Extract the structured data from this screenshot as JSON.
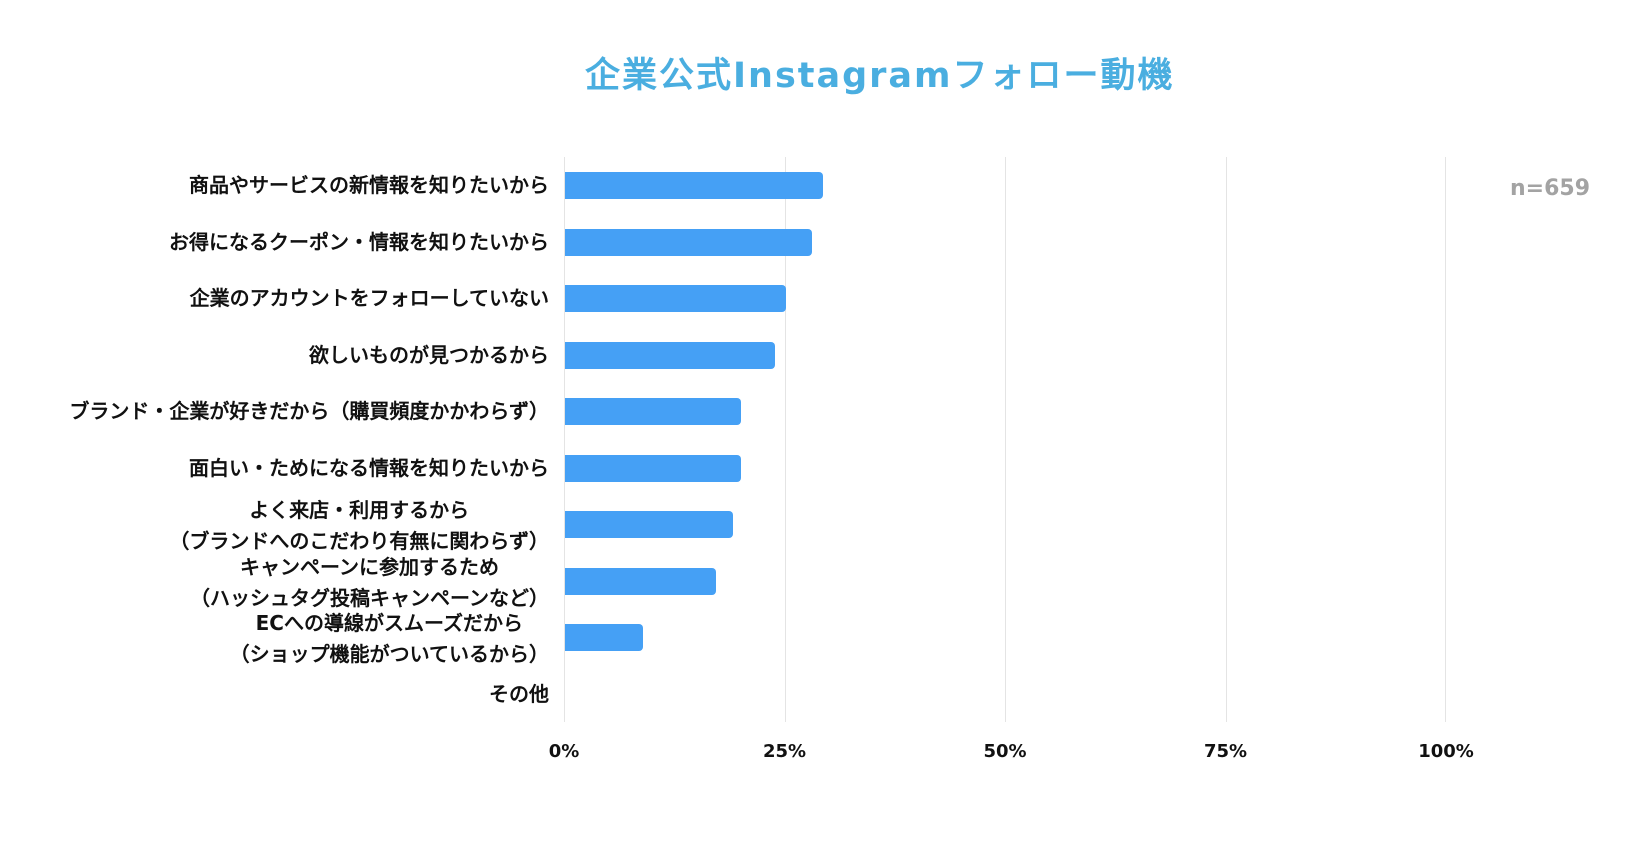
{
  "chart": {
    "title": "企業公式Instagramフォロー動機",
    "sample_size": "n=659",
    "bar_color": "#45a0f5",
    "title_color": "#4aaee0",
    "x_ticks": [
      "0%",
      "25%",
      "50%",
      "75%",
      "100%"
    ]
  },
  "chart_data": {
    "type": "bar",
    "orientation": "horizontal",
    "title": "企業公式Instagramフォロー動機",
    "annotation": "n=659",
    "xlabel": "",
    "ylabel": "",
    "xlim": [
      0,
      100
    ],
    "x_tick_labels": [
      "0%",
      "25%",
      "50%",
      "75%",
      "100%"
    ],
    "grid": "vertical",
    "legend": "none",
    "categories": [
      "商品やサービスの新情報を知りたいから",
      "お得になるクーポン・情報を知りたいから",
      "企業のアカウントをフォローしていない",
      "欲しいものが見つかるから",
      "ブランド・企業が好きだから（購買頻度かかわらず）",
      "面白い・ためになる情報を知りたいから",
      "よく来店・利用するから（ブランドへのこだわり有無に関わらず）",
      "キャンペーンに参加するため（ハッシュタグ投稿キャンペーンなど）",
      "ECへの導線がスムーズだから（ショップ機能がついているから）",
      "その他"
    ],
    "values": [
      29.2,
      28.0,
      25.0,
      23.8,
      19.9,
      19.9,
      19.0,
      17.1,
      8.9,
      0
    ],
    "unit": "%"
  },
  "rows": [
    {
      "lines": [
        "商品やサービスの新情報を知りたいから"
      ],
      "value": 29.2
    },
    {
      "lines": [
        "お得になるクーポン・情報を知りたいから"
      ],
      "value": 28.0
    },
    {
      "lines": [
        "企業のアカウントをフォローしていない"
      ],
      "value": 25.0
    },
    {
      "lines": [
        "欲しいものが見つかるから"
      ],
      "value": 23.8
    },
    {
      "lines": [
        "ブランド・企業が好きだから（購買頻度かかわらず）"
      ],
      "value": 19.9
    },
    {
      "lines": [
        "面白い・ためになる情報を知りたいから"
      ],
      "value": 19.9
    },
    {
      "lines": [
        "よく来店・利用するから",
        "（ブランドへのこだわり有無に関わらず）"
      ],
      "value": 19.0
    },
    {
      "lines": [
        "キャンペーンに参加するため",
        "（ハッシュタグ投稿キャンペーンなど）"
      ],
      "value": 17.1
    },
    {
      "lines": [
        "ECへの導線がスムーズだから",
        "（ショップ機能がついているから）"
      ],
      "value": 8.9
    },
    {
      "lines": [
        "その他"
      ],
      "value": 0
    }
  ]
}
